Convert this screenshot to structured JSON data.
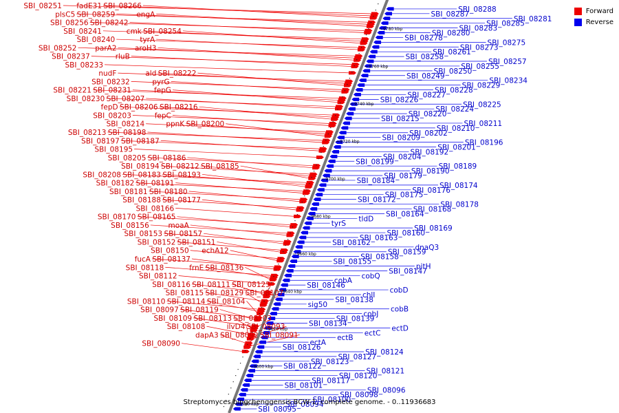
{
  "caption": "Streptomyces bingchenggensis BCW-1, complete genome. - 0..11936683",
  "legend": {
    "forward_label": "Forward",
    "reverse_label": "Reverse",
    "forward_color": "#ee0000",
    "reverse_color": "#0000ee"
  },
  "axis_ticks": [
    "9780 kbp",
    "9760 kbp",
    "9740 kbp",
    "9720 kbp",
    "9700 kbp",
    "9680 kbp",
    "9660 kbp",
    "9640 kbp",
    "9620 kbp",
    "9600 kbp",
    "9580 kbp"
  ],
  "forward_genes": [
    "SBI_08251",
    "fadE31",
    "SBI_08266",
    "plsC5",
    "SBI_08259",
    "engA",
    "SBI_08256",
    "SBI_08242",
    "SBI_08241",
    "cmk",
    "SBI_08254",
    "SBI_08240",
    "tyrA",
    "SBI_08252",
    "parA2",
    "aroH3",
    "SBI_08237",
    "rluB",
    "SBI_08233",
    "nudF",
    "ald",
    "SBI_08222",
    "SBI_08232",
    "pyrG",
    "SBI_08221",
    "SBI_08231",
    "fepG",
    "SBI_08230",
    "SBI_08207",
    "fepD",
    "SBI_08206",
    "SBI_08216",
    "SBI_08203",
    "fepC",
    "SBI_08214",
    "ppnK",
    "SBI_08200",
    "SBI_08213",
    "SBI_08198",
    "SBI_08197",
    "SBI_08187",
    "SBI_08195",
    "SBI_08205",
    "SBI_08186",
    "SBI_08194",
    "SBI_08212",
    "SBI_08185",
    "SBI_08208",
    "SBI_08183",
    "SBI_08193",
    "SBI_08182",
    "SBI_08191",
    "SBI_08181",
    "SBI_08180",
    "SBI_08188",
    "SBI_08177",
    "SBI_08166",
    "SBI_08170",
    "SBI_08165",
    "SBI_08156",
    "moaA",
    "SBI_08153",
    "SBI_08157",
    "SBI_08152",
    "SBI_08151",
    "SBI_08150",
    "echA12",
    "fucA",
    "SBI_08137",
    "SBI_08118",
    "frnE",
    "SBI_08136",
    "SBI_08112",
    "SBI_08116",
    "SBI_08111",
    "SBI_08125",
    "SBI_08115",
    "SBI_08129",
    "SBI_08107",
    "SBI_08110",
    "SBI_08114",
    "SBI_08104",
    "SBI_08097",
    "SBI_08119",
    "SBI_08109",
    "SBI_08113",
    "SBI_08103",
    "SBI_08108",
    "ilvD4",
    "SBI_08093",
    "dapA3",
    "SBI_08092",
    "SBI_08091",
    "SBI_08090"
  ],
  "reverse_genes": [
    "SBI_08095",
    "SBI_08094",
    "SBI_08100",
    "SBI_08098",
    "SBI_08096",
    "SBI_08101",
    "SBI_08117",
    "SBI_08120",
    "SBI_08121",
    "SBI_08122",
    "SBI_08123",
    "SBI_08127",
    "SBI_08124",
    "SBI_08126",
    "ectA",
    "ectB",
    "ectC",
    "ectD",
    "SBI_08134",
    "SBI_08139",
    "cobJ",
    "cobB",
    "sig50",
    "SBI_08138",
    "chlI",
    "cobD",
    "SBI_08146",
    "cobA",
    "cobQ",
    "SBI_08147",
    "pitH",
    "SBI_08155",
    "SBI_08158",
    "SBI_08159",
    "dnaQ3",
    "SBI_08162",
    "SBI_08163",
    "SBI_08160",
    "SBI_08169",
    "tyrS",
    "tldD",
    "SBI_08164",
    "SBI_08168",
    "SBI_08178",
    "SBI_08172",
    "SBI_08175",
    "SBI_08176",
    "SBI_08174",
    "SBI_08184",
    "SBI_08179",
    "SBI_08190",
    "SBI_08189",
    "SBI_08199",
    "SBI_08204",
    "SBI_08192",
    "SBI_08201",
    "SBI_08196",
    "SBI_08209",
    "SBI_08202",
    "SBI_08210",
    "SBI_08211",
    "SBI_08215",
    "SBI_08220",
    "SBI_08224",
    "SBI_08225",
    "SBI_08226",
    "SBI_08227",
    "SBI_08228",
    "SBI_08229",
    "SBI_08234",
    "SBI_08249",
    "SBI_08250",
    "SBI_08255",
    "SBI_08257",
    "SBI_08258",
    "SBI_08261",
    "SBI_08273",
    "SBI_08275",
    "SBI_08278",
    "SBI_08280",
    "SBI_08283",
    "SBI_08285",
    "SBI_08281",
    "SBI_08287",
    "SBI_08288"
  ]
}
